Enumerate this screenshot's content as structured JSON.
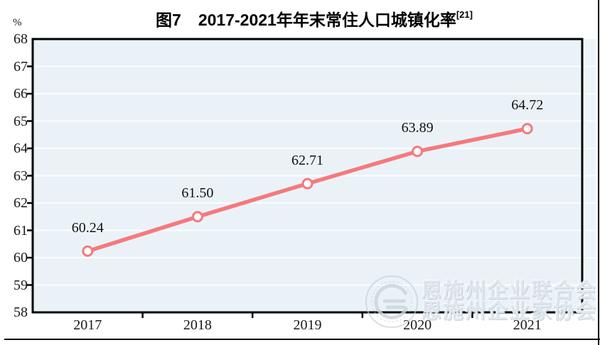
{
  "title": {
    "prefix": "图7",
    "main": "2017-2021年年末常住人口城镇化率",
    "superscript": "[21]"
  },
  "chart_data": {
    "type": "line",
    "title": "图7 2017-2021年年末常住人口城镇化率[21]",
    "unit": "%",
    "categories": [
      "2017",
      "2018",
      "2019",
      "2020",
      "2021"
    ],
    "series": [
      {
        "name": "年末常住人口城镇化率",
        "values": [
          60.24,
          61.5,
          62.71,
          63.89,
          64.72
        ]
      }
    ],
    "point_labels": [
      "60.24",
      "61.50",
      "62.71",
      "63.89",
      "64.72"
    ],
    "ylim": [
      58,
      68
    ],
    "yticks": [
      68,
      67,
      66,
      65,
      64,
      63,
      62,
      61,
      60,
      59,
      58
    ],
    "grid": true,
    "legend_position": "none",
    "colors": {
      "line": "#f5797c",
      "marker_fill": "#ffffff",
      "plot_background": "#eaf2f8",
      "gridline": "#fbfdfe",
      "axis": "#000000"
    }
  },
  "watermark": {
    "line1": "恩施州企业联合会",
    "line2": "恩施州企业家协会",
    "logo": "enshi-association-logo"
  }
}
